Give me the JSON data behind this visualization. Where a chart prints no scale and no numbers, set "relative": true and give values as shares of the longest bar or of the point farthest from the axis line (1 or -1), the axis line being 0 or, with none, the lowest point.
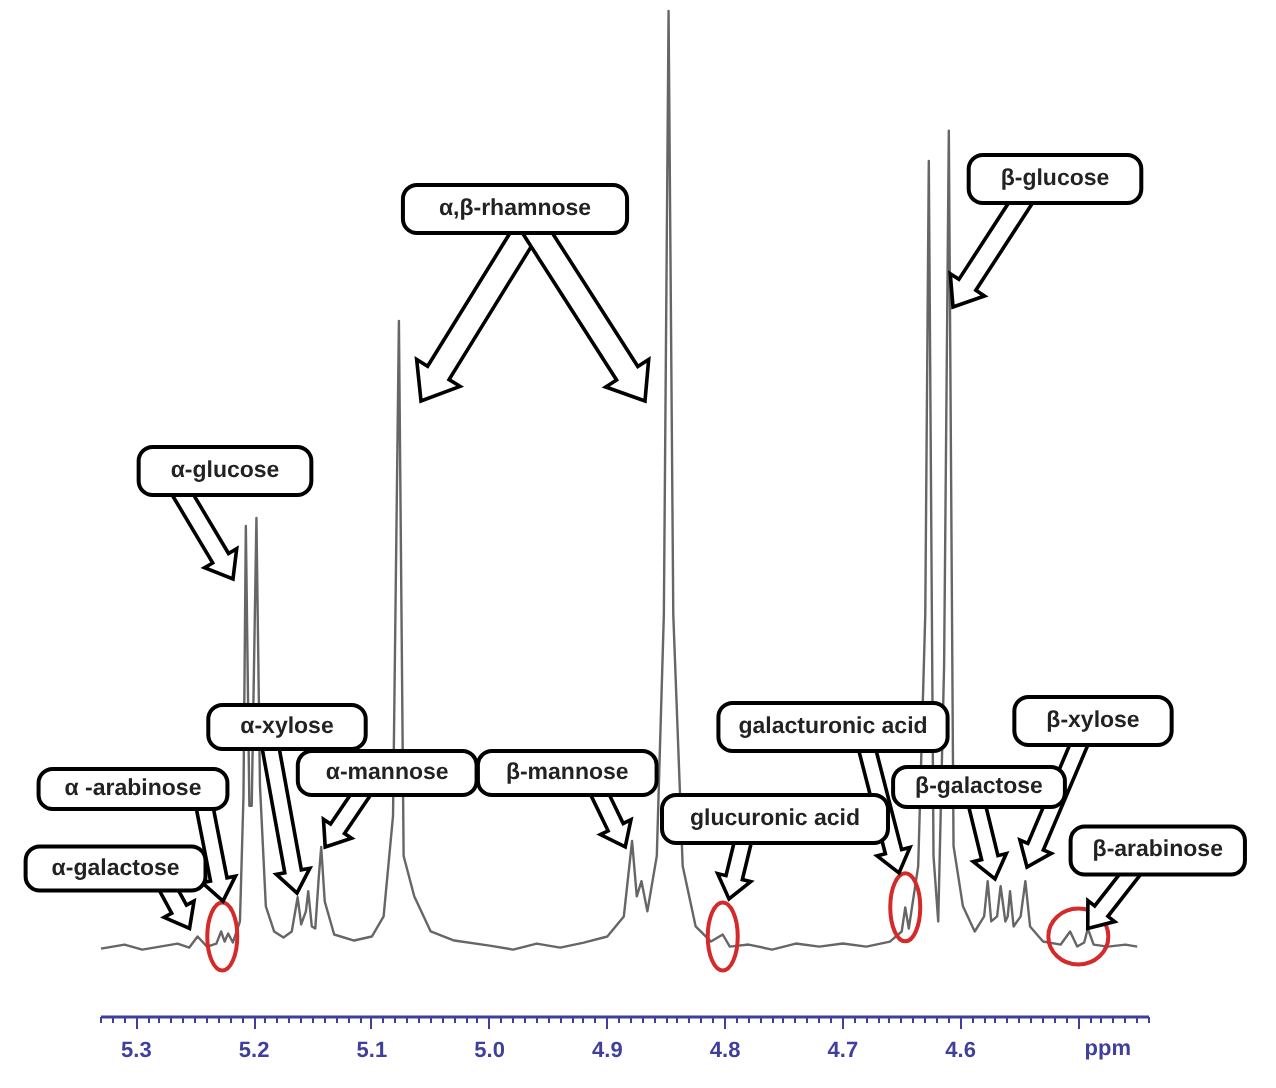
{
  "chart_data": {
    "type": "line",
    "relative": true,
    "xlabel": "ppm",
    "xlim": [
      5.33,
      4.44
    ],
    "xticks": [
      5.3,
      5.2,
      5.1,
      {
        "value": 5,
        "label": "5.0"
      },
      4.9,
      4.8,
      4.7,
      4.6,
      {
        "value": 4.5,
        "label": null
      }
    ],
    "series": [
      {
        "color": "#666666",
        "x": [
          5.33,
          5.31,
          5.295,
          5.28,
          5.265,
          5.255,
          5.248,
          5.24,
          5.232,
          5.228,
          5.225,
          5.222,
          5.218,
          5.212,
          5.209,
          5.207,
          5.204,
          5.202,
          5.198,
          5.195,
          5.19,
          5.183,
          5.175,
          5.168,
          5.163,
          5.16,
          5.156,
          5.154,
          5.151,
          5.148,
          5.145,
          5.143,
          5.14,
          5.132,
          5.115,
          5.1,
          5.09,
          5.082,
          5.077,
          5.073,
          5.064,
          5.05,
          5.03,
          5.0,
          4.98,
          4.96,
          4.94,
          4.92,
          4.9,
          4.886,
          4.879,
          4.875,
          4.871,
          4.866,
          4.858,
          4.852,
          4.848,
          4.844,
          4.836,
          4.825,
          4.812,
          4.802,
          4.796,
          4.78,
          4.76,
          4.74,
          4.72,
          4.7,
          4.68,
          4.66,
          4.65,
          4.647,
          4.644,
          4.636,
          4.63,
          4.627,
          4.623,
          4.619,
          4.614,
          4.61,
          4.606,
          4.598,
          4.588,
          4.58,
          4.577,
          4.574,
          4.569,
          4.566,
          4.562,
          4.56,
          4.558,
          4.555,
          4.549,
          4.545,
          4.541,
          4.53,
          4.515,
          4.507,
          4.501,
          4.495,
          4.492,
          4.487,
          4.475,
          4.46,
          4.45
        ],
        "values": [
          0.068,
          0.072,
          0.067,
          0.07,
          0.073,
          0.069,
          0.08,
          0.07,
          0.073,
          0.085,
          0.075,
          0.083,
          0.074,
          0.095,
          0.22,
          0.488,
          0.21,
          0.21,
          0.496,
          0.23,
          0.11,
          0.085,
          0.079,
          0.085,
          0.119,
          0.092,
          0.105,
          0.125,
          0.09,
          0.088,
          0.14,
          0.169,
          0.115,
          0.082,
          0.076,
          0.08,
          0.1,
          0.2,
          0.692,
          0.16,
          0.12,
          0.085,
          0.076,
          0.071,
          0.067,
          0.073,
          0.069,
          0.074,
          0.08,
          0.1,
          0.175,
          0.12,
          0.135,
          0.105,
          0.16,
          0.4,
          1.0,
          0.4,
          0.15,
          0.09,
          0.075,
          0.082,
          0.07,
          0.072,
          0.067,
          0.073,
          0.07,
          0.073,
          0.07,
          0.075,
          0.085,
          0.109,
          0.088,
          0.15,
          0.4,
          0.851,
          0.16,
          0.095,
          0.35,
          0.881,
          0.17,
          0.11,
          0.085,
          0.1,
          0.135,
          0.095,
          0.1,
          0.13,
          0.095,
          0.1,
          0.125,
          0.09,
          0.1,
          0.135,
          0.09,
          0.075,
          0.072,
          0.085,
          0.07,
          0.074,
          0.088,
          0.072,
          0.07,
          0.072,
          0.07
        ]
      },
      {
        "type": "scatter",
        "color": "#d42a2a",
        "x": [
          5.227,
          4.802,
          4.647
        ],
        "values": [
          0.08,
          0.08,
          0.109
        ]
      },
      {
        "type": "scatter",
        "color": "#d42a2a",
        "x": [
          4.5
        ],
        "values": [
          0.08
        ]
      }
    ],
    "annotations": [
      {
        "text": "α-galactose",
        "x": 5.248,
        "y": 0.08
      },
      "α -arabinose",
      "α-glucose",
      "α-xylose",
      {
        "text": "α-mannose",
        "x": 5.143,
        "y": 0.169
      },
      {
        "text": "β-mannose",
        "x": 4.878,
        "y": 0.175
      },
      "α,β-rhamnose",
      "glucuronic acid",
      "galacturonic acid",
      "β-galactose",
      "β-xylose",
      "β-glucose",
      {
        "text": "β-arabinose",
        "x": 4.492,
        "y": 0.088
      }
    ]
  }
}
